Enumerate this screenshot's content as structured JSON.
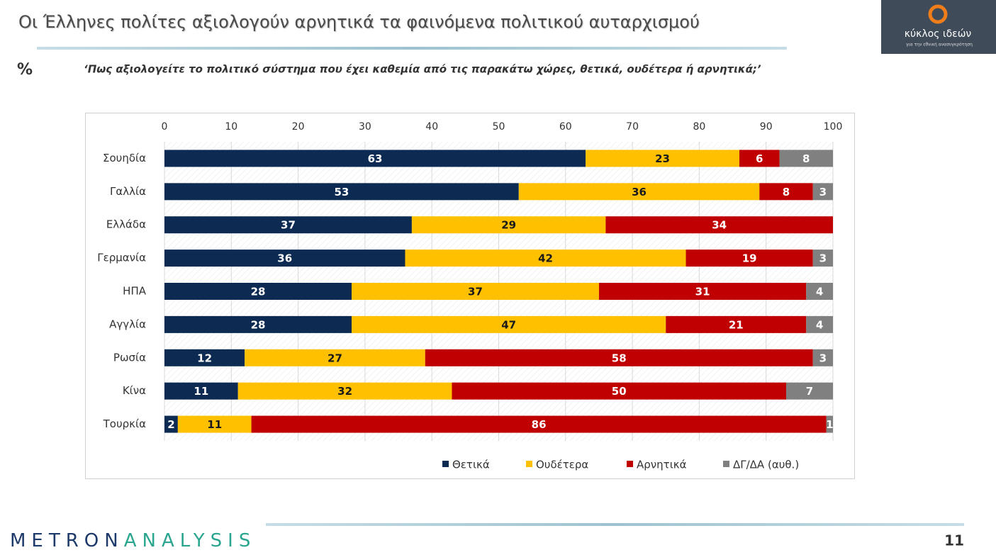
{
  "chart_data": {
    "type": "stacked_bar_horizontal",
    "title": "Οι Έλληνες πολίτες αξιολογούν αρνητικά τα φαινόμενα πολιτικού αυταρχισμού",
    "unit_label": "%",
    "subtitle": "‘Πως αξιολογείτε το πολιτικό σύστημα που έχει καθεμία από τις παρακάτω χώρες, θετικά, ουδέτερα ή αρνητικά;’",
    "categories": [
      "Σουηδία",
      "Γαλλία",
      "Ελλάδα",
      "Γερμανία",
      "ΗΠΑ",
      "Αγγλία",
      "Ρωσία",
      "Κίνα",
      "Τουρκία"
    ],
    "series": [
      {
        "name": "Θετικά",
        "color": "#0d2b52",
        "label_color": "#ffffff",
        "values": [
          63,
          53,
          37,
          36,
          28,
          28,
          12,
          11,
          2
        ]
      },
      {
        "name": "Ουδέτερα",
        "color": "#ffc000",
        "label_color": "#1a1a1a",
        "values": [
          23,
          36,
          29,
          42,
          37,
          47,
          27,
          32,
          11
        ]
      },
      {
        "name": "Αρνητικά",
        "color": "#c00000",
        "label_color": "#ffffff",
        "values": [
          6,
          8,
          34,
          19,
          31,
          21,
          58,
          50,
          86
        ]
      },
      {
        "name": "ΔΓ/ΔΑ (αυθ.)",
        "color": "#808080",
        "label_color": "#ffffff",
        "values": [
          8,
          3,
          null,
          3,
          4,
          4,
          3,
          7,
          1
        ]
      }
    ],
    "xlim": [
      0,
      100
    ],
    "xticks": [
      0,
      10,
      20,
      30,
      40,
      50,
      60,
      70,
      80,
      90,
      100
    ],
    "grid": true,
    "legend": "bottom"
  },
  "logo": {
    "name": "κύκλος ιδεών",
    "tagline": "για την εθνική ανασυγκρότηση"
  },
  "footer": {
    "brand_first": "METRON",
    "brand_second": "ANALYSIS",
    "page_number": "11"
  }
}
